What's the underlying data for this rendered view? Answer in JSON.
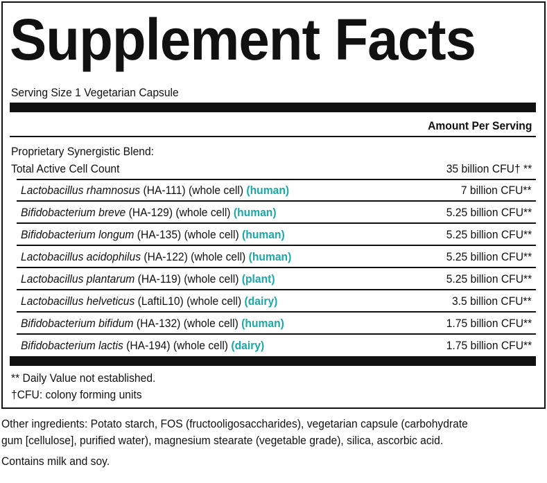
{
  "header": {
    "title": "Supplement Facts",
    "serving_size": "Serving Size 1 Vegetarian Capsule",
    "amount_header": "Amount Per Serving"
  },
  "blend": {
    "name": "Proprietary Synergistic Blend:",
    "total_label": "Total Active Cell Count",
    "total_amount": "35 billion CFU† **"
  },
  "ingredients": [
    {
      "name": "Lactobacillus rhamnosus",
      "detail": "(HA-111) (whole cell)",
      "source": "(human)",
      "amount": "7 billion CFU**"
    },
    {
      "name": "Bifidobacterium breve",
      "detail": "(HA-129) (whole cell)",
      "source": "(human)",
      "amount": "5.25 billion CFU**"
    },
    {
      "name": "Bifidobacterium longum",
      "detail": "(HA-135) (whole cell)",
      "source": "(human)",
      "amount": "5.25 billion CFU**"
    },
    {
      "name": "Lactobacillus acidophilus",
      "detail": "(HA-122) (whole cell)",
      "source": "(human)",
      "amount": "5.25 billion CFU**"
    },
    {
      "name": "Lactobacillus plantarum",
      "detail": "(HA-119) (whole cell)",
      "source": "(plant)",
      "amount": "5.25 billion CFU**"
    },
    {
      "name": "Lactobacillus helveticus",
      "detail": "(LaftiL10) (whole cell)",
      "source": "(dairy)",
      "amount": "3.5 billion CFU**"
    },
    {
      "name": "Bifidobacterium bifidum",
      "detail": "(HA-132) (whole cell)",
      "source": "(human)",
      "amount": "1.75 billion CFU**"
    },
    {
      "name": "Bifidobacterium lactis",
      "detail": "(HA-194) (whole cell)",
      "source": "(dairy)",
      "amount": "1.75 billion CFU**"
    }
  ],
  "footnotes": [
    "** Daily Value not established.",
    "†CFU: colony forming units"
  ],
  "other_ingredients": [
    "Other ingredients: Potato starch, FOS (fructooligosaccharides), vegetarian capsule (carbohydrate",
    "gum [cellulose], purified water), magnesium stearate (vegetable grade), silica, ascorbic acid."
  ],
  "allergens": "Contains milk and soy."
}
